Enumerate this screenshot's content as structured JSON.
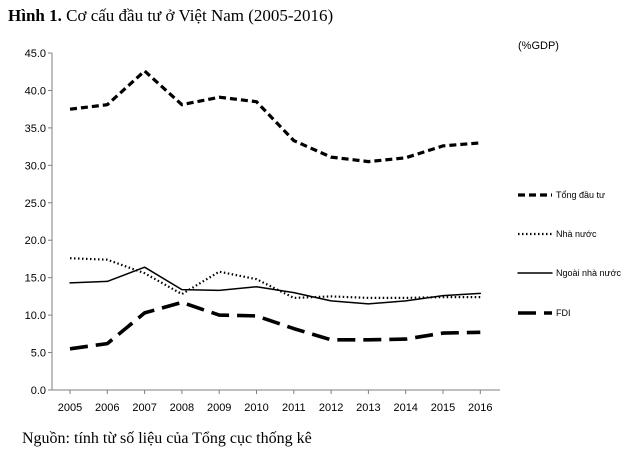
{
  "figure": {
    "title_prefix": "Hình 1.",
    "title_text": "Cơ cấu đầu tư ở Việt Nam (2005-2016)",
    "source": "Nguồn: tính từ số liệu của Tổng cục thống kê"
  },
  "chart_data": {
    "type": "line",
    "title": "Cơ cấu đầu tư ở Việt Nam (2005-2016)",
    "ylabel": "(%GDP)",
    "xlabel": "",
    "ylim": [
      0,
      45
    ],
    "yticks": [
      "0.0",
      "5.0",
      "10.0",
      "15.0",
      "20.0",
      "25.0",
      "30.0",
      "35.0",
      "40.0",
      "45.0"
    ],
    "x": [
      "2005",
      "2006",
      "2007",
      "2008",
      "2009",
      "2010",
      "2011",
      "2012",
      "2013",
      "2014",
      "2015",
      "2016"
    ],
    "grid": false,
    "legend_position": "right",
    "series": [
      {
        "name": "Tổng đầu tư",
        "style": "short-dash",
        "values": [
          37.5,
          38.1,
          42.6,
          38.1,
          39.1,
          38.5,
          33.3,
          31.1,
          30.5,
          31.0,
          32.6,
          33.0
        ]
      },
      {
        "name": "Nhà nước",
        "style": "dotted",
        "values": [
          17.6,
          17.4,
          15.6,
          12.8,
          15.8,
          14.8,
          12.3,
          12.5,
          12.3,
          12.3,
          12.4,
          12.4
        ]
      },
      {
        "name": "Ngoài nhà nước",
        "style": "solid",
        "values": [
          14.3,
          14.5,
          16.4,
          13.4,
          13.3,
          13.8,
          13.0,
          11.9,
          11.5,
          11.9,
          12.6,
          12.9
        ]
      },
      {
        "name": "FDI",
        "style": "long-dash",
        "values": [
          5.5,
          6.2,
          10.3,
          11.7,
          10.0,
          9.9,
          8.2,
          6.7,
          6.7,
          6.8,
          7.6,
          7.7
        ]
      }
    ]
  }
}
